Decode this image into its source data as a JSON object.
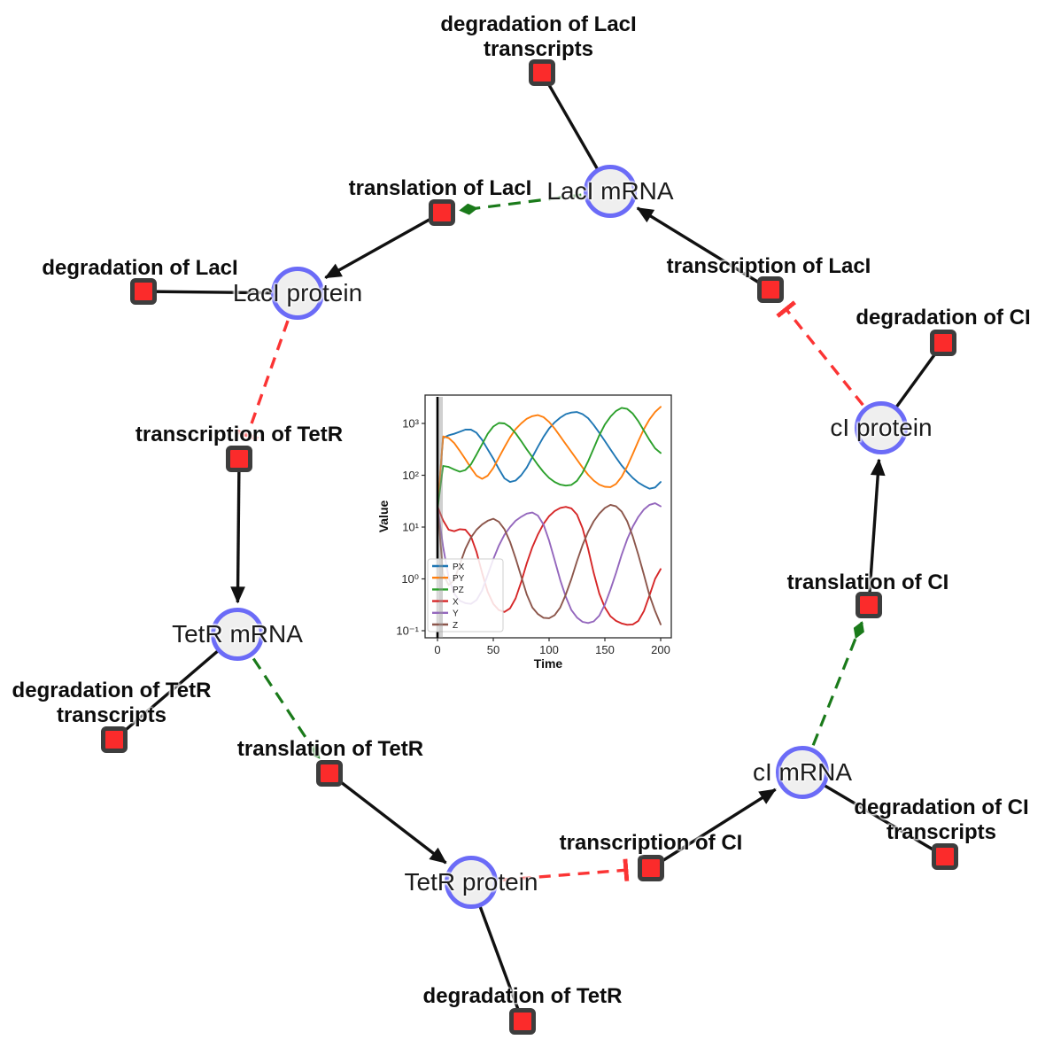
{
  "diagram": {
    "species": [
      {
        "id": "laci_mrna",
        "label": "LacI mRNA"
      },
      {
        "id": "laci_protein",
        "label": "LacI protein"
      },
      {
        "id": "tetr_mrna",
        "label": "TetR mRNA"
      },
      {
        "id": "tetr_protein",
        "label": "TetR protein"
      },
      {
        "id": "ci_mrna",
        "label": "cI mRNA"
      },
      {
        "id": "ci_protein",
        "label": "cI protein"
      }
    ],
    "reactions": [
      {
        "id": "deg_laci_tx",
        "label_lines": [
          "degradation of LacI",
          "transcripts"
        ]
      },
      {
        "id": "transl_laci",
        "label_lines": [
          "translation of LacI"
        ]
      },
      {
        "id": "deg_laci",
        "label_lines": [
          "degradation of LacI"
        ]
      },
      {
        "id": "txn_tetr",
        "label_lines": [
          "transcription of TetR"
        ]
      },
      {
        "id": "deg_tetr_tx",
        "label_lines": [
          "degradation of TetR",
          "transcripts"
        ]
      },
      {
        "id": "transl_tetr",
        "label_lines": [
          "translation of TetR"
        ]
      },
      {
        "id": "deg_tetr",
        "label_lines": [
          "degradation of TetR"
        ]
      },
      {
        "id": "txn_ci",
        "label_lines": [
          "transcription of CI"
        ]
      },
      {
        "id": "deg_ci_tx",
        "label_lines": [
          "degradation of CI",
          "transcripts"
        ]
      },
      {
        "id": "transl_ci",
        "label_lines": [
          "translation of CI"
        ]
      },
      {
        "id": "deg_ci",
        "label_lines": [
          "degradation of CI"
        ]
      },
      {
        "id": "txn_laci",
        "label_lines": [
          "transcription of LacI"
        ]
      }
    ],
    "edges": [
      {
        "from": "laci_mrna",
        "to": "deg_laci_tx",
        "type": "plain"
      },
      {
        "from": "txn_laci",
        "to": "laci_mrna",
        "type": "arrow"
      },
      {
        "from": "laci_mrna",
        "to": "transl_laci",
        "type": "activation"
      },
      {
        "from": "transl_laci",
        "to": "laci_protein",
        "type": "arrow"
      },
      {
        "from": "laci_protein",
        "to": "deg_laci",
        "type": "plain"
      },
      {
        "from": "laci_protein",
        "to": "txn_tetr",
        "type": "inhibition"
      },
      {
        "from": "txn_tetr",
        "to": "tetr_mrna",
        "type": "arrow"
      },
      {
        "from": "tetr_mrna",
        "to": "deg_tetr_tx",
        "type": "plain"
      },
      {
        "from": "tetr_mrna",
        "to": "transl_tetr",
        "type": "activation"
      },
      {
        "from": "transl_tetr",
        "to": "tetr_protein",
        "type": "arrow"
      },
      {
        "from": "tetr_protein",
        "to": "deg_tetr",
        "type": "plain"
      },
      {
        "from": "tetr_protein",
        "to": "txn_ci",
        "type": "inhibition"
      },
      {
        "from": "txn_ci",
        "to": "ci_mrna",
        "type": "arrow"
      },
      {
        "from": "ci_mrna",
        "to": "deg_ci_tx",
        "type": "plain"
      },
      {
        "from": "ci_mrna",
        "to": "transl_ci",
        "type": "activation"
      },
      {
        "from": "transl_ci",
        "to": "ci_protein",
        "type": "arrow"
      },
      {
        "from": "ci_protein",
        "to": "deg_ci",
        "type": "plain"
      },
      {
        "from": "ci_protein",
        "to": "txn_laci",
        "type": "inhibition"
      }
    ],
    "colors": {
      "species_fill": "#efefef",
      "species_border": "#6b6bf7",
      "reaction_fill": "#fb2b2b",
      "reaction_border": "#3d3d3d",
      "edge": "#111111",
      "activation": "#1a7a1a",
      "inhibition": "#fb3434"
    }
  },
  "chart_data": {
    "type": "line",
    "xlabel": "Time",
    "ylabel": "Value",
    "x_ticks": [
      0,
      50,
      100,
      150,
      200
    ],
    "y_tick_labels": [
      "10⁻¹",
      "10⁰",
      "10¹",
      "10²",
      "10³"
    ],
    "y_scale": "log",
    "xlim": [
      -8,
      208
    ],
    "ylim": [
      0.07,
      2800
    ],
    "grid": false,
    "legend_position": "lower left",
    "event_line_x": 0,
    "t_start": 0,
    "t_step": 5,
    "series": [
      {
        "name": "PX",
        "color": "#1f77b4",
        "values": [
          25,
          525,
          590,
          630,
          690,
          760,
          760,
          660,
          480,
          316,
          210,
          132,
          87,
          74,
          79,
          100,
          141,
          224,
          355,
          550,
          795,
          1050,
          1290,
          1510,
          1620,
          1660,
          1510,
          1260,
          930,
          660,
          457,
          316,
          219,
          155,
          115,
          89,
          72,
          62,
          55,
          58,
          74
        ]
      },
      {
        "name": "PY",
        "color": "#ff7f0e",
        "values": [
          22,
          560,
          525,
          417,
          295,
          204,
          138,
          98,
          85,
          98,
          138,
          219,
          347,
          537,
          776,
          1000,
          1230,
          1380,
          1450,
          1320,
          1070,
          795,
          562,
          398,
          282,
          200,
          141,
          102,
          79,
          66,
          60,
          59,
          68,
          93,
          148,
          257,
          457,
          776,
          1200,
          1660,
          2090
        ]
      },
      {
        "name": "PZ",
        "color": "#2ca02c",
        "values": [
          22,
          151,
          145,
          129,
          117,
          126,
          162,
          251,
          398,
          631,
          871,
          1020,
          1000,
          851,
          646,
          457,
          316,
          224,
          158,
          115,
          89,
          74,
          66,
          63,
          65,
          78,
          112,
          186,
          331,
          589,
          955,
          1350,
          1740,
          2000,
          1910,
          1550,
          1100,
          724,
          479,
          331,
          269
        ]
      },
      {
        "name": "X",
        "color": "#d62728",
        "values": [
          25,
          13.5,
          8.9,
          8.3,
          9.1,
          8.9,
          6.6,
          3.3,
          1.3,
          0.56,
          0.33,
          0.25,
          0.23,
          0.27,
          0.42,
          0.87,
          2.0,
          4.1,
          7.2,
          11.5,
          16.2,
          20.4,
          23.4,
          24.5,
          22.9,
          17.4,
          9.5,
          3.8,
          1.3,
          0.52,
          0.28,
          0.19,
          0.155,
          0.138,
          0.13,
          0.132,
          0.155,
          0.24,
          0.48,
          1.0,
          1.55
        ]
      },
      {
        "name": "Y",
        "color": "#9467bd",
        "values": [
          25,
          4.2,
          1.05,
          0.52,
          0.38,
          0.34,
          0.33,
          0.39,
          0.6,
          1.2,
          2.4,
          4.4,
          7.1,
          10.0,
          13.2,
          15.8,
          18.2,
          19.1,
          16.6,
          11.2,
          5.5,
          2.3,
          0.95,
          0.45,
          0.25,
          0.18,
          0.148,
          0.141,
          0.151,
          0.195,
          0.32,
          0.62,
          1.3,
          2.9,
          5.8,
          10.2,
          15.8,
          21.9,
          26.9,
          28.8,
          25.1
        ]
      },
      {
        "name": "Z",
        "color": "#8c564b",
        "values": [
          25,
          1.26,
          0.76,
          0.95,
          1.9,
          3.8,
          6.3,
          8.9,
          11.2,
          13.2,
          14.5,
          12.6,
          9.1,
          5.2,
          2.5,
          1.12,
          0.5,
          0.28,
          0.21,
          0.178,
          0.174,
          0.2,
          0.28,
          0.5,
          1.0,
          2.2,
          4.5,
          8.1,
          12.9,
          18.2,
          23.4,
          26.9,
          25.1,
          20.0,
          12.9,
          6.6,
          2.9,
          1.2,
          0.48,
          0.24,
          0.132
        ]
      }
    ]
  }
}
